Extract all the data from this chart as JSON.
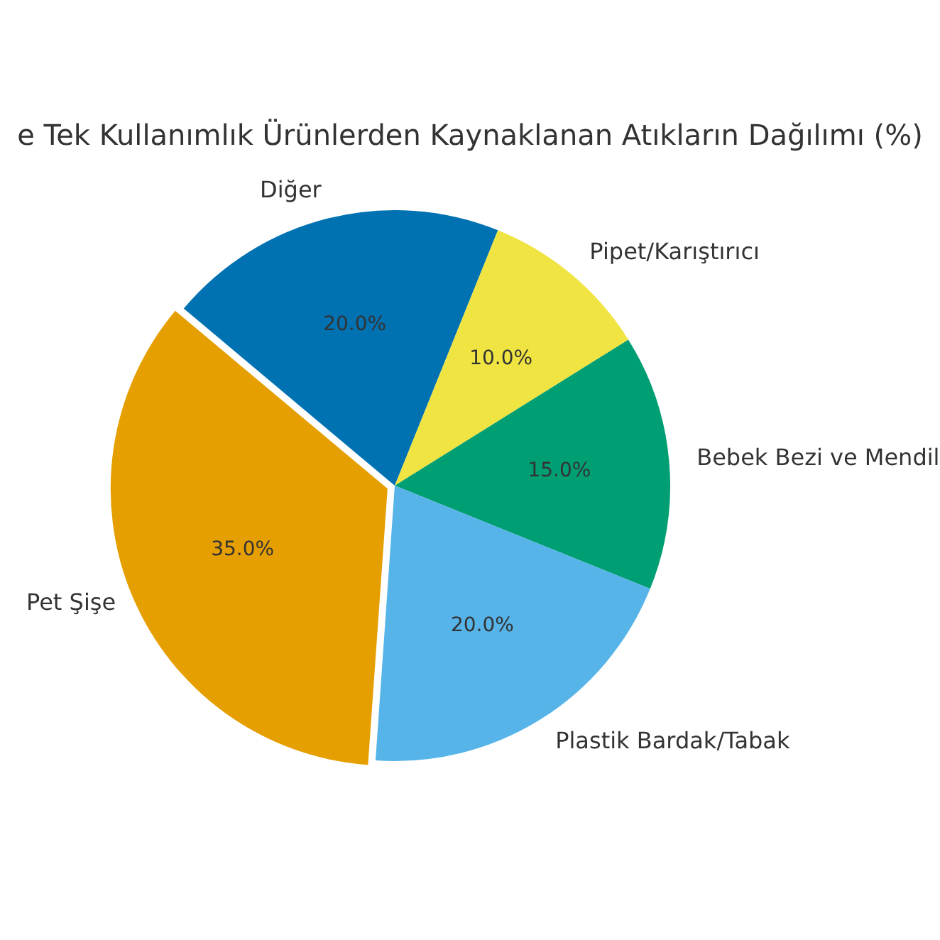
{
  "chart_data": {
    "type": "pie",
    "title": "e Tek Kullanımlık Ürünlerden Kaynaklanan Atıkların Dağılımı (%)",
    "categories": [
      "Diğer",
      "Pipet/Karıştırıcı",
      "Bebek Bezi ve Mendil",
      "Plastik Bardak/Tabak",
      "Pet Şişe"
    ],
    "values": [
      20,
      10,
      15,
      20,
      35
    ],
    "value_labels": [
      "20.0%",
      "10.0%",
      "15.0%",
      "20.0%",
      "35.0%"
    ],
    "colors": [
      "#0072b2",
      "#f0e442",
      "#009e73",
      "#56b4e9",
      "#e69f00"
    ],
    "legend": false
  }
}
